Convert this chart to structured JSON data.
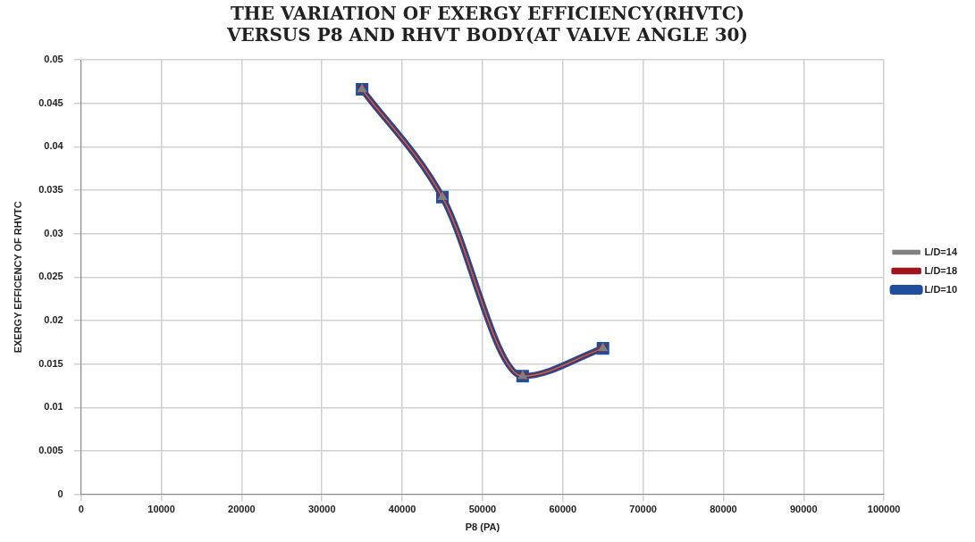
{
  "chart_data": {
    "type": "line",
    "title": "THE VARIATION OF EXERGY EFFICIENCY(RHVTC) VERSUS P8 AND RHVT BODY(AT VALVE ANGLE 30)",
    "xlabel": "P8 (PA)",
    "ylabel": "EXERGY EFFICENCY OF RHVTC",
    "x": [
      35000,
      45000,
      55000,
      65000
    ],
    "series": [
      {
        "name": "L/D=10",
        "color": "#1f4e9c",
        "marker": "square",
        "values": [
          0.0466,
          0.0342,
          0.0136,
          0.0168
        ]
      },
      {
        "name": "L/D=14",
        "color": "#808080",
        "marker": "triangle",
        "values": [
          0.0466,
          0.0342,
          0.0136,
          0.0168
        ]
      },
      {
        "name": "L/D=18",
        "color": "#a0141e",
        "marker": "cross",
        "values": [
          0.0466,
          0.0342,
          0.0136,
          0.0168
        ]
      }
    ],
    "xlim": [
      0,
      100000
    ],
    "xticks": [
      0,
      10000,
      20000,
      30000,
      40000,
      50000,
      60000,
      70000,
      80000,
      90000,
      100000
    ],
    "ylim": [
      0,
      0.05
    ],
    "yticks": [
      0,
      0.005,
      0.01,
      0.015,
      0.02,
      0.025,
      0.03,
      0.035,
      0.04,
      0.045,
      0.05
    ],
    "grid": true,
    "legend": "right",
    "line_style": "solid"
  }
}
